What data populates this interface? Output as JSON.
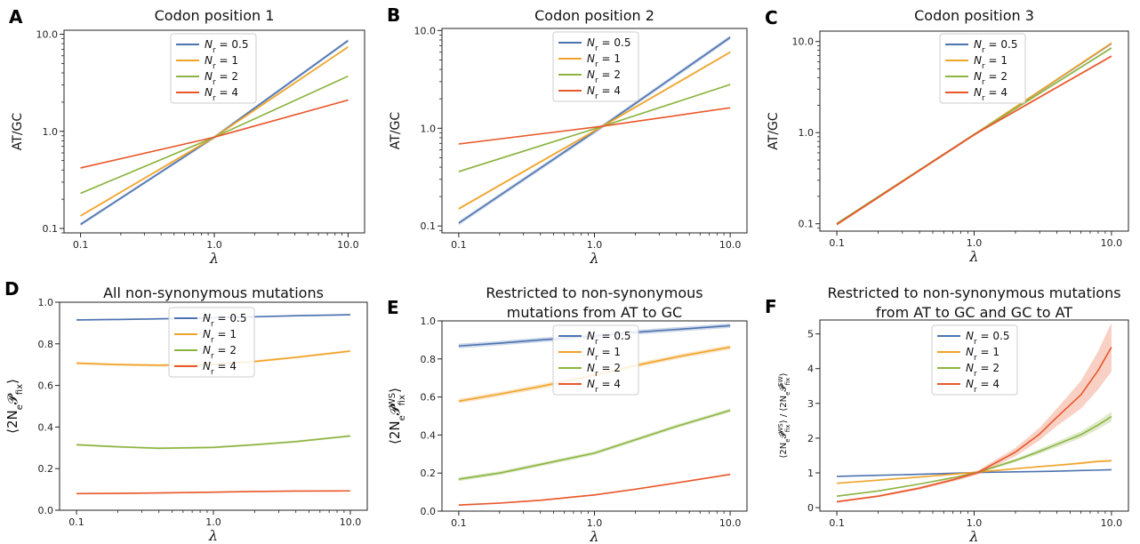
{
  "chart_data": [
    {
      "id": "A",
      "type": "line",
      "panel_label": "A",
      "title": [
        "Codon position 1"
      ],
      "xlabel": "λ",
      "ylabel": "AT/GC",
      "xscale": "log",
      "yscale": "log",
      "xlim": [
        0.1,
        10
      ],
      "ylim": [
        0.09,
        11
      ],
      "xticks": [
        0.1,
        1,
        10
      ],
      "xtick_labels": [
        "0.1",
        "1.0",
        "10.0"
      ],
      "yticks": [
        0.1,
        1,
        10
      ],
      "ytick_labels": [
        "0.1",
        "1.0",
        "10.0"
      ],
      "x": [
        0.1,
        1,
        10
      ],
      "legend": "top-center",
      "series": [
        {
          "name": "N_r = 0.5",
          "label_main": "N",
          "label_sub": "r",
          "label_rest": " = 0.5",
          "color": "#4c72b0",
          "values": [
            0.11,
            0.87,
            8.6
          ],
          "band": 0.04
        },
        {
          "name": "N_r = 1",
          "label_main": "N",
          "label_sub": "r",
          "label_rest": " = 1",
          "color": "#f0a32a",
          "values": [
            0.135,
            0.87,
            7.4
          ],
          "band": 0.03
        },
        {
          "name": "N_r = 2",
          "label_main": "N",
          "label_sub": "r",
          "label_rest": " = 2",
          "color": "#8db442",
          "values": [
            0.23,
            0.87,
            3.7
          ],
          "band": 0.02
        },
        {
          "name": "N_r = 4",
          "label_main": "N",
          "label_sub": "r",
          "label_rest": " = 4",
          "color": "#e8572a",
          "values": [
            0.42,
            0.87,
            2.1
          ],
          "band": 0.015
        }
      ]
    },
    {
      "id": "B",
      "type": "line",
      "panel_label": "B",
      "title": [
        "Codon position 2"
      ],
      "xlabel": "λ",
      "ylabel": "AT/GC",
      "xscale": "log",
      "yscale": "log",
      "xlim": [
        0.1,
        10
      ],
      "ylim": [
        0.085,
        10.5
      ],
      "xticks": [
        0.1,
        1,
        10
      ],
      "xtick_labels": [
        "0.1",
        "1.0",
        "10.0"
      ],
      "yticks": [
        0.1,
        1,
        10
      ],
      "ytick_labels": [
        "0.1",
        "1.0",
        "10.0"
      ],
      "x": [
        0.1,
        1.15,
        10
      ],
      "legend": "top-center",
      "series": [
        {
          "name": "N_r = 0.5",
          "label_main": "N",
          "label_sub": "r",
          "label_rest": " = 0.5",
          "color": "#4c72b0",
          "values": [
            0.107,
            1.05,
            8.5
          ],
          "band": 0.05
        },
        {
          "name": "N_r = 1",
          "label_main": "N",
          "label_sub": "r",
          "label_rest": " = 1",
          "color": "#f0a32a",
          "values": [
            0.15,
            1.05,
            6.0
          ],
          "band": 0.03
        },
        {
          "name": "N_r = 2",
          "label_main": "N",
          "label_sub": "r",
          "label_rest": " = 2",
          "color": "#8db442",
          "values": [
            0.36,
            1.05,
            2.8
          ],
          "band": 0.02
        },
        {
          "name": "N_r = 4",
          "label_main": "N",
          "label_sub": "r",
          "label_rest": " = 4",
          "color": "#e8572a",
          "values": [
            0.69,
            1.05,
            1.62
          ],
          "band": 0.015
        }
      ]
    },
    {
      "id": "C",
      "type": "line",
      "panel_label": "C",
      "title": [
        "Codon position 3"
      ],
      "xlabel": "λ",
      "ylabel": "AT/GC",
      "xscale": "log",
      "yscale": "log",
      "xlim": [
        0.1,
        10
      ],
      "ylim": [
        0.083,
        13
      ],
      "xticks": [
        0.1,
        1,
        10
      ],
      "xtick_labels": [
        "0.1",
        "1.0",
        "10.0"
      ],
      "yticks": [
        0.1,
        1,
        10
      ],
      "ytick_labels": [
        "0.1",
        "1.0",
        "10.0"
      ],
      "x": [
        0.1,
        1,
        10
      ],
      "legend": "top-center",
      "series": [
        {
          "name": "N_r = 0.5",
          "label_main": "N",
          "label_sub": "r",
          "label_rest": " = 0.5",
          "color": "#4c72b0",
          "values": [
            0.1,
            0.95,
            9.5
          ],
          "band": 0.03
        },
        {
          "name": "N_r = 1",
          "label_main": "N",
          "label_sub": "r",
          "label_rest": " = 1",
          "color": "#f0a32a",
          "values": [
            0.1,
            0.95,
            9.6
          ],
          "band": 0.03
        },
        {
          "name": "N_r = 2",
          "label_main": "N",
          "label_sub": "r",
          "label_rest": " = 2",
          "color": "#8db442",
          "values": [
            0.1,
            0.95,
            8.5
          ],
          "band": 0.03
        },
        {
          "name": "N_r = 4",
          "label_main": "N",
          "label_sub": "r",
          "label_rest": " = 4",
          "color": "#e8572a",
          "values": [
            0.098,
            0.95,
            6.9
          ],
          "band": 0.03
        }
      ]
    },
    {
      "id": "D",
      "type": "line",
      "panel_label": "D",
      "title": [
        "All non-synonymous mutations"
      ],
      "xlabel": "λ",
      "ylabel": "⟨2N_e 𝓟_fix⟩",
      "xscale": "log",
      "yscale": "linear",
      "xlim": [
        0.1,
        10
      ],
      "ylim": [
        0,
        1.0
      ],
      "xticks": [
        0.1,
        1,
        10
      ],
      "xtick_labels": [
        "0.1",
        "1.0",
        "10.0"
      ],
      "yticks": [
        0,
        0.2,
        0.4,
        0.6,
        0.8,
        1.0
      ],
      "ytick_labels": [
        "0.0",
        "0.2",
        "0.4",
        "0.6",
        "0.8",
        "1.0"
      ],
      "x": [
        0.1,
        0.2,
        0.4,
        1,
        2,
        4,
        10
      ],
      "legend": "top-center",
      "series": [
        {
          "name": "N_r = 0.5",
          "label_main": "N",
          "label_sub": "r",
          "label_rest": " = 0.5",
          "color": "#4c72b0",
          "values": [
            0.915,
            0.917,
            0.92,
            0.925,
            0.93,
            0.935,
            0.94
          ],
          "band": 0.004
        },
        {
          "name": "N_r = 1",
          "label_main": "N",
          "label_sub": "r",
          "label_rest": " = 1",
          "color": "#f0a32a",
          "values": [
            0.707,
            0.7,
            0.697,
            0.702,
            0.715,
            0.735,
            0.765
          ],
          "band": 0.006
        },
        {
          "name": "N_r = 2",
          "label_main": "N",
          "label_sub": "r",
          "label_rest": " = 2",
          "color": "#8db442",
          "values": [
            0.315,
            0.305,
            0.298,
            0.302,
            0.315,
            0.33,
            0.357
          ],
          "band": 0.005
        },
        {
          "name": "N_r = 4",
          "label_main": "N",
          "label_sub": "r",
          "label_rest": " = 4",
          "color": "#e8572a",
          "values": [
            0.08,
            0.081,
            0.083,
            0.087,
            0.09,
            0.092,
            0.093
          ],
          "band": 0.003
        }
      ]
    },
    {
      "id": "E",
      "type": "line",
      "panel_label": "E",
      "title": [
        "Restricted to non-synonymous",
        "mutations from AT to GC"
      ],
      "xlabel": "λ",
      "ylabel": "⟨2N_e 𝓟_fix^WS⟩",
      "xscale": "log",
      "yscale": "linear",
      "xlim": [
        0.1,
        10
      ],
      "ylim": [
        0,
        1.0
      ],
      "xticks": [
        0.1,
        1,
        10
      ],
      "xtick_labels": [
        "0.1",
        "1.0",
        "10.0"
      ],
      "yticks": [
        0,
        0.2,
        0.4,
        0.6,
        0.8,
        1.0
      ],
      "ytick_labels": [
        "0.0",
        "0.2",
        "0.4",
        "0.6",
        "0.8",
        "1.0"
      ],
      "x": [
        0.1,
        0.2,
        0.4,
        1,
        2,
        4,
        10
      ],
      "legend": "top-center",
      "series": [
        {
          "name": "N_r = 0.5",
          "label_main": "N",
          "label_sub": "r",
          "label_rest": " = 0.5",
          "color": "#4c72b0",
          "values": [
            0.868,
            0.883,
            0.9,
            0.92,
            0.94,
            0.955,
            0.975
          ],
          "band": 0.012
        },
        {
          "name": "N_r = 1",
          "label_main": "N",
          "label_sub": "r",
          "label_rest": " = 1",
          "color": "#f0a32a",
          "values": [
            0.578,
            0.615,
            0.655,
            0.715,
            0.765,
            0.81,
            0.862
          ],
          "band": 0.012
        },
        {
          "name": "N_r = 2",
          "label_main": "N",
          "label_sub": "r",
          "label_rest": " = 2",
          "color": "#8db442",
          "values": [
            0.168,
            0.2,
            0.245,
            0.305,
            0.375,
            0.445,
            0.53
          ],
          "band": 0.01
        },
        {
          "name": "N_r = 4",
          "label_main": "N",
          "label_sub": "r",
          "label_rest": " = 4",
          "color": "#e8572a",
          "values": [
            0.032,
            0.042,
            0.057,
            0.085,
            0.115,
            0.148,
            0.193
          ],
          "band": 0.004
        }
      ]
    },
    {
      "id": "F",
      "type": "line",
      "panel_label": "F",
      "title": [
        "Restricted to non-synonymous mutations",
        "from AT to GC and GC to AT"
      ],
      "xlabel": "λ",
      "ylabel": "⟨2N_e 𝓟_fix^WS⟩ / ⟨2N_e 𝓟_fix^SW⟩",
      "xscale": "log",
      "yscale": "linear",
      "xlim": [
        0.1,
        10
      ],
      "ylim": [
        -0.1,
        5.4
      ],
      "xticks": [
        0.1,
        1,
        10
      ],
      "xtick_labels": [
        "0.1",
        "1.0",
        "10.0"
      ],
      "yticks": [
        0,
        1,
        2,
        3,
        4,
        5
      ],
      "ytick_labels": [
        "0",
        "1",
        "2",
        "3",
        "4",
        "5"
      ],
      "x": [
        0.1,
        0.2,
        0.4,
        0.7,
        1.05,
        2,
        3,
        4,
        6,
        8,
        10
      ],
      "legend": "top-left",
      "series": [
        {
          "name": "N_r = 0.5",
          "label_main": "N",
          "label_sub": "r",
          "label_rest": " = 0.5",
          "color": "#4c72b0",
          "values": [
            0.9,
            0.93,
            0.96,
            0.99,
            1.01,
            1.03,
            1.04,
            1.05,
            1.07,
            1.08,
            1.09
          ],
          "bands": [
            0.01,
            0.01,
            0.01,
            0.01,
            0.01,
            0.01,
            0.01,
            0.01,
            0.01,
            0.01,
            0.01
          ]
        },
        {
          "name": "N_r = 1",
          "label_main": "N",
          "label_sub": "r",
          "label_rest": " = 1",
          "color": "#f0a32a",
          "values": [
            0.7,
            0.79,
            0.88,
            0.96,
            1.02,
            1.12,
            1.18,
            1.22,
            1.28,
            1.33,
            1.35
          ],
          "bands": [
            0.01,
            0.01,
            0.01,
            0.01,
            0.02,
            0.02,
            0.02,
            0.02,
            0.03,
            0.03,
            0.03
          ]
        },
        {
          "name": "N_r = 2",
          "label_main": "N",
          "label_sub": "r",
          "label_rest": " = 2",
          "color": "#8db442",
          "values": [
            0.33,
            0.48,
            0.68,
            0.86,
            1.01,
            1.36,
            1.62,
            1.82,
            2.1,
            2.38,
            2.62
          ],
          "bands": [
            0.02,
            0.02,
            0.02,
            0.02,
            0.03,
            0.05,
            0.07,
            0.08,
            0.1,
            0.12,
            0.14
          ]
        },
        {
          "name": "N_r = 4",
          "label_main": "N",
          "label_sub": "r",
          "label_rest": " = 4",
          "color": "#e8572a",
          "values": [
            0.17,
            0.33,
            0.56,
            0.8,
            1.0,
            1.6,
            2.12,
            2.6,
            3.25,
            3.95,
            4.62
          ],
          "bands": [
            0.03,
            0.03,
            0.04,
            0.05,
            0.06,
            0.12,
            0.18,
            0.25,
            0.4,
            0.55,
            0.7
          ]
        }
      ]
    }
  ]
}
